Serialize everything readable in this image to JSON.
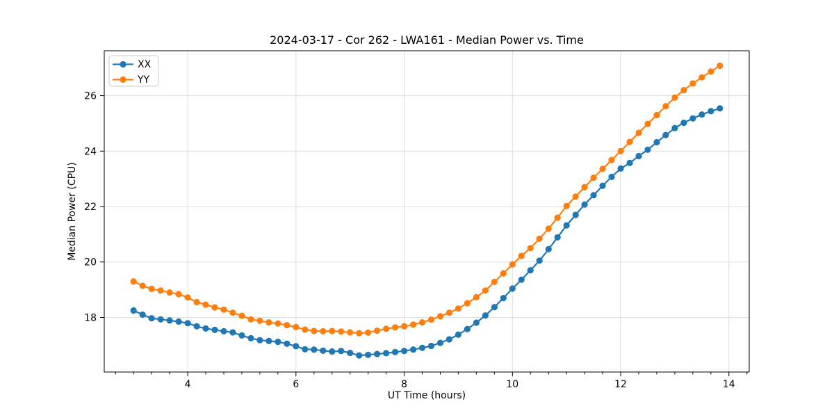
{
  "chart_data": {
    "type": "line",
    "title": "2024-03-17 - Cor 262 - LWA161 - Median Power vs. Time",
    "xlabel": "UT Time (hours)",
    "ylabel": "Median Power (CPU)",
    "xlim": [
      2.458,
      14.375
    ],
    "ylim": [
      16.03,
      27.62
    ],
    "xticks": [
      4,
      6,
      8,
      10,
      12,
      14
    ],
    "yticks": [
      18,
      20,
      22,
      24,
      26
    ],
    "x_minor_step": 0.33333,
    "grid": true,
    "legend_position": "upper left",
    "x": [
      3.0,
      3.167,
      3.333,
      3.5,
      3.667,
      3.833,
      4.0,
      4.167,
      4.333,
      4.5,
      4.667,
      4.833,
      5.0,
      5.167,
      5.333,
      5.5,
      5.667,
      5.833,
      6.0,
      6.167,
      6.333,
      6.5,
      6.667,
      6.833,
      7.0,
      7.167,
      7.333,
      7.5,
      7.667,
      7.833,
      8.0,
      8.167,
      8.333,
      8.5,
      8.667,
      8.833,
      9.0,
      9.167,
      9.333,
      9.5,
      9.667,
      9.833,
      10.0,
      10.167,
      10.333,
      10.5,
      10.667,
      10.833,
      11.0,
      11.167,
      11.333,
      11.5,
      11.667,
      11.833,
      12.0,
      12.167,
      12.333,
      12.5,
      12.667,
      12.833,
      13.0,
      13.167,
      13.333,
      13.5,
      13.667,
      13.833
    ],
    "series": [
      {
        "name": "XX",
        "color": "#1f77b4",
        "values": [
          18.25,
          18.1,
          17.97,
          17.93,
          17.89,
          17.85,
          17.79,
          17.68,
          17.6,
          17.55,
          17.5,
          17.46,
          17.35,
          17.25,
          17.18,
          17.15,
          17.12,
          17.05,
          16.96,
          16.85,
          16.84,
          16.8,
          16.77,
          16.79,
          16.72,
          16.63,
          16.65,
          16.68,
          16.71,
          16.75,
          16.79,
          16.84,
          16.9,
          16.97,
          17.08,
          17.21,
          17.38,
          17.58,
          17.81,
          18.07,
          18.37,
          18.7,
          19.04,
          19.36,
          19.7,
          20.05,
          20.46,
          20.89,
          21.32,
          21.7,
          22.07,
          22.41,
          22.75,
          23.07,
          23.37,
          23.57,
          23.82,
          24.05,
          24.32,
          24.58,
          24.83,
          25.02,
          25.18,
          25.32,
          25.44,
          25.54
        ]
      },
      {
        "name": "YY",
        "color": "#ff7f0e",
        "values": [
          19.3,
          19.14,
          19.03,
          18.97,
          18.9,
          18.84,
          18.72,
          18.55,
          18.46,
          18.36,
          18.28,
          18.17,
          18.06,
          17.93,
          17.88,
          17.82,
          17.78,
          17.72,
          17.65,
          17.56,
          17.51,
          17.5,
          17.51,
          17.49,
          17.46,
          17.43,
          17.45,
          17.52,
          17.59,
          17.64,
          17.68,
          17.74,
          17.82,
          17.92,
          18.04,
          18.17,
          18.32,
          18.51,
          18.73,
          18.97,
          19.28,
          19.59,
          19.91,
          20.22,
          20.5,
          20.84,
          21.2,
          21.6,
          22.02,
          22.36,
          22.7,
          23.04,
          23.36,
          23.68,
          24.0,
          24.33,
          24.66,
          24.98,
          25.3,
          25.62,
          25.93,
          26.2,
          26.44,
          26.66,
          26.87,
          27.08
        ]
      }
    ],
    "marker": "circle",
    "marker_radius": 4.6
  }
}
